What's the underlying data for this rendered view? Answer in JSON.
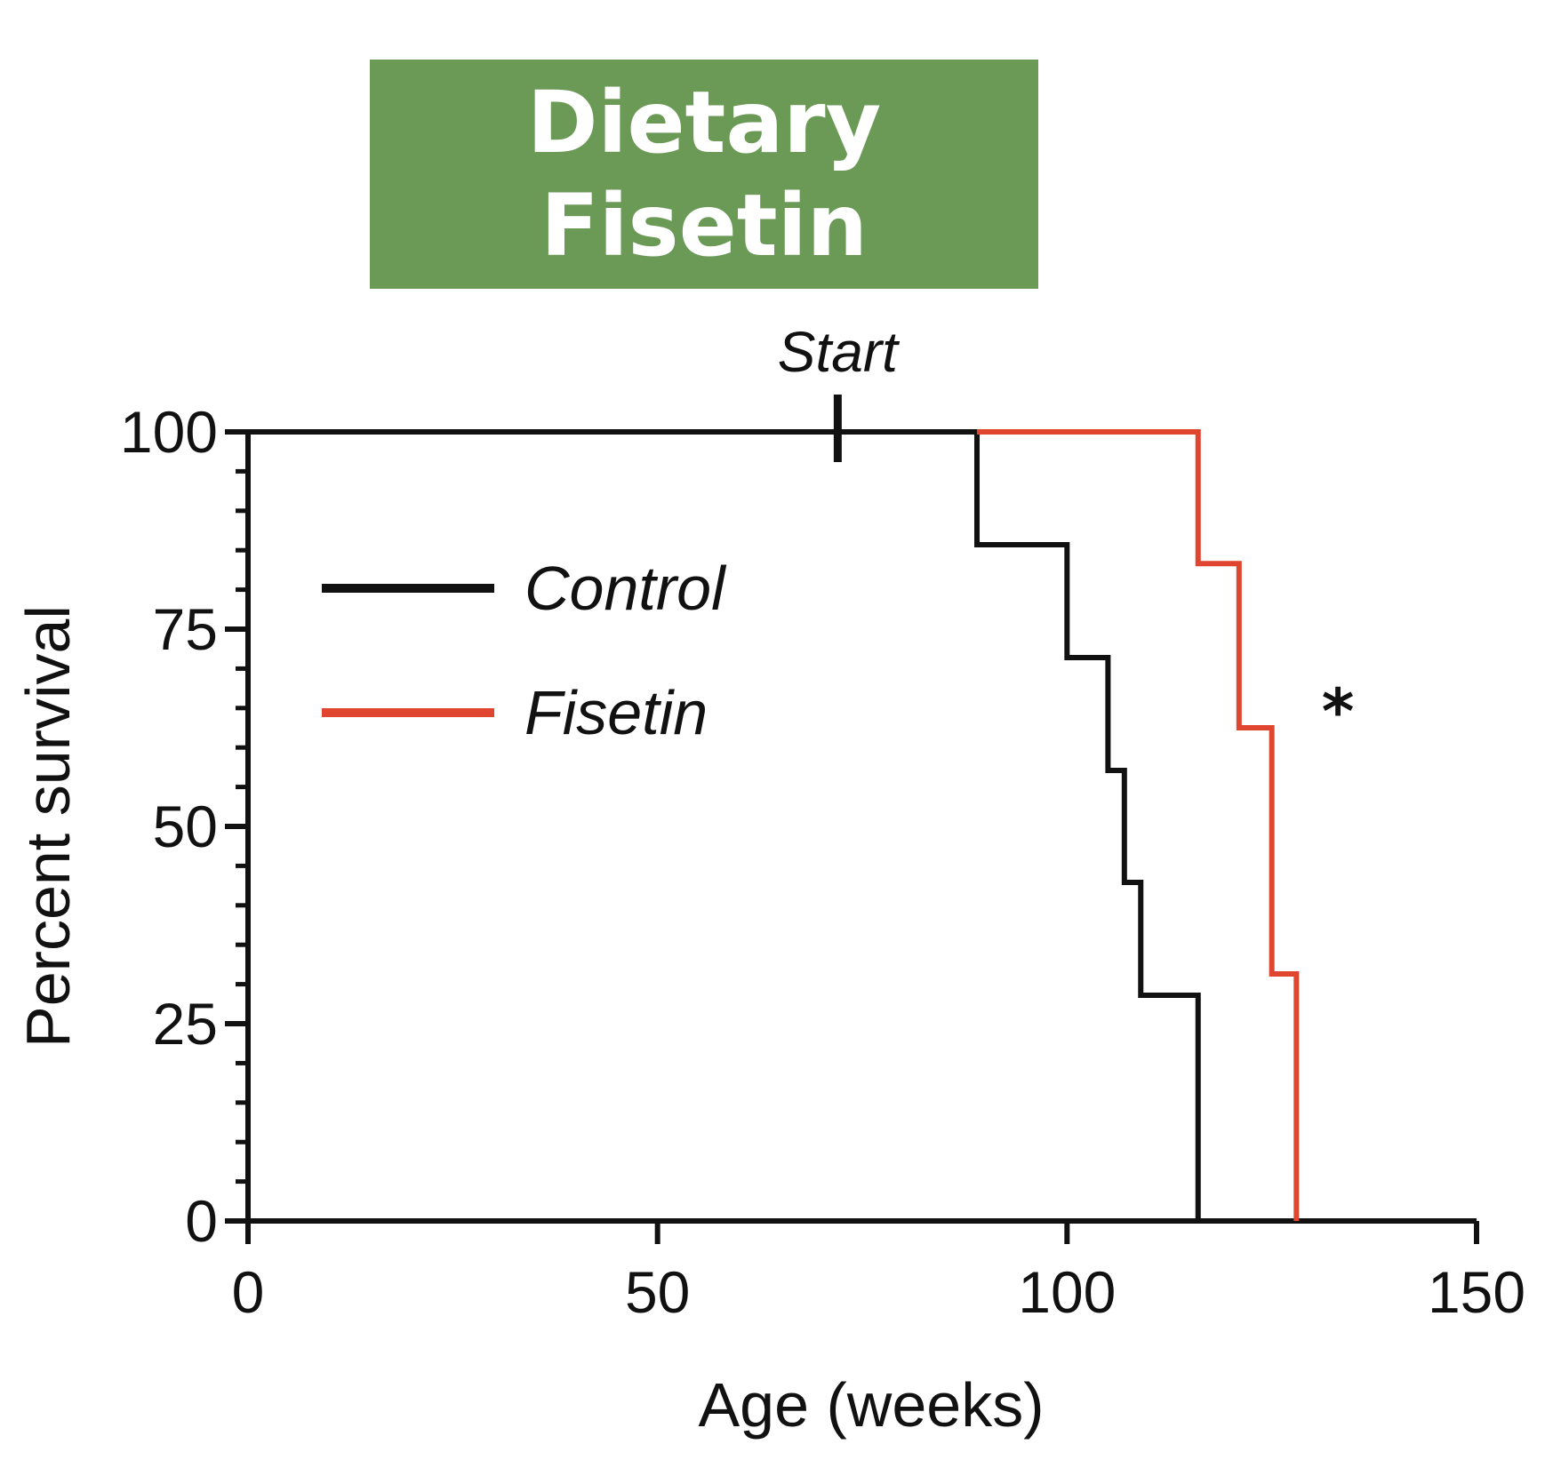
{
  "banner": {
    "line1": "Dietary",
    "line2": "Fisetin",
    "background": "#6a9a55",
    "text_color": "#ffffff"
  },
  "chart_data": {
    "type": "line",
    "subtype": "kaplan-meier-step",
    "xlabel": "Age (weeks)",
    "ylabel": "Percent survival",
    "xlim": [
      0,
      150
    ],
    "ylim": [
      0,
      100
    ],
    "xticks": [
      0,
      50,
      100,
      150
    ],
    "yticks": [
      0,
      25,
      50,
      75,
      100
    ],
    "grid": false,
    "legend_position": "upper-left",
    "annotations": {
      "start_label": "Start",
      "start_x": 72,
      "significance": "*"
    },
    "series": [
      {
        "name": "Control",
        "color": "#111111",
        "x": [
          0,
          89,
          89,
          100,
          100,
          105,
          105,
          107,
          107,
          109,
          109,
          116,
          116
        ],
        "y": [
          100,
          100,
          85.7,
          85.7,
          71.4,
          71.4,
          57.1,
          57.1,
          42.9,
          42.9,
          28.6,
          28.6,
          0
        ]
      },
      {
        "name": "Fisetin",
        "color": "#e04530",
        "x": [
          89,
          116,
          116,
          121,
          121,
          125,
          125,
          128,
          128
        ],
        "y": [
          100,
          100,
          83.3,
          83.3,
          62.5,
          62.5,
          31.3,
          31.3,
          0
        ]
      }
    ]
  }
}
